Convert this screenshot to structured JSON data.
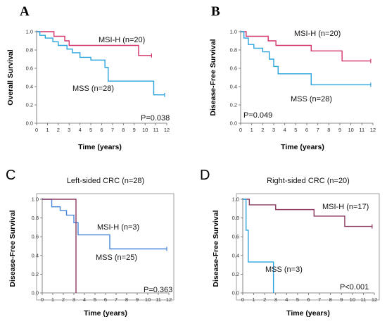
{
  "chart_data": [
    {
      "panel": "A",
      "type": "line",
      "ylabel": "Overall Survival",
      "xlabel": "Time (years)",
      "xlim": [
        0,
        12
      ],
      "ylim": [
        0,
        1
      ],
      "xticks": [
        "0",
        "1",
        "2",
        "3",
        "4",
        "5",
        "6",
        "7",
        "8",
        "9",
        "10",
        "11",
        "12"
      ],
      "yticks": [
        "0.0",
        "0.2",
        "0.4",
        "0.6",
        "0.8",
        "1.0"
      ],
      "pvalue": "P=0.038",
      "series": [
        {
          "name": "MSI-H (n=20)",
          "color": "#d6336c",
          "x": [
            0,
            1.3,
            1.6,
            2.6,
            3.0,
            9.4,
            10.6
          ],
          "y": [
            1.0,
            1.0,
            0.95,
            0.9,
            0.85,
            0.74,
            0.74
          ]
        },
        {
          "name": "MSS (n=28)",
          "color": "#29a3dd",
          "x": [
            0,
            0.3,
            0.8,
            1.5,
            2.0,
            2.8,
            3.3,
            4.0,
            5.0,
            6.3,
            6.6,
            10.8,
            11.8
          ],
          "y": [
            1.0,
            0.96,
            0.93,
            0.89,
            0.85,
            0.81,
            0.77,
            0.72,
            0.69,
            0.61,
            0.46,
            0.31,
            0.31
          ]
        }
      ]
    },
    {
      "panel": "B",
      "type": "line",
      "ylabel": "Disease-Free Survival",
      "xlabel": "Time (years)",
      "xlim": [
        0,
        12
      ],
      "ylim": [
        0,
        1
      ],
      "xticks": [
        "0",
        "1",
        "2",
        "3",
        "4",
        "5",
        "6",
        "7",
        "8",
        "9",
        "10",
        "11",
        "12"
      ],
      "yticks": [
        "0.0",
        "0.2",
        "0.4",
        "0.6",
        "0.8",
        "1.0"
      ],
      "pvalue": "P=0.049",
      "series": [
        {
          "name": "MSI-H (n=20)",
          "color": "#d6336c",
          "x": [
            0,
            0.5,
            2.5,
            3.2,
            6.4,
            9.2,
            11.8
          ],
          "y": [
            1.0,
            0.95,
            0.9,
            0.85,
            0.79,
            0.68,
            0.68
          ]
        },
        {
          "name": "MSS (n=28)",
          "color": "#29a3dd",
          "x": [
            0,
            0.3,
            0.7,
            1.2,
            2.0,
            2.6,
            3.0,
            3.4,
            6.4,
            11.8
          ],
          "y": [
            1.0,
            0.93,
            0.86,
            0.82,
            0.78,
            0.7,
            0.62,
            0.54,
            0.42,
            0.42
          ]
        }
      ]
    },
    {
      "panel": "C",
      "type": "line",
      "title": "Left-sided CRC (n=28)",
      "ylabel": "Disease-Free Survival",
      "xlabel": "Time (years)",
      "xlim": [
        0,
        12
      ],
      "ylim": [
        0,
        1
      ],
      "xticks": [
        "0",
        "1",
        "2",
        "3",
        "4",
        "5",
        "6",
        "7",
        "8",
        "9",
        "10",
        "11",
        "12"
      ],
      "yticks": [
        "0.0",
        "0.2",
        "0.4",
        "0.6",
        "0.8",
        "1.0"
      ],
      "pvalue": "P=0.363",
      "series": [
        {
          "name": "MSS (n=25)",
          "color": "#4a86d8",
          "x": [
            0,
            0.9,
            1.7,
            2.3,
            3.0,
            3.4,
            6.4,
            11.8
          ],
          "y": [
            1.0,
            0.92,
            0.88,
            0.83,
            0.75,
            0.62,
            0.47,
            0.47
          ]
        },
        {
          "name": "MSI-H (n=3)",
          "color": "#8b3a62",
          "x": [
            0,
            3.2,
            3.2
          ],
          "y": [
            1.0,
            1.0,
            0.0
          ]
        }
      ]
    },
    {
      "panel": "D",
      "type": "line",
      "title": "Right-sided CRC (n=20)",
      "ylabel": "Disease-Free Survival",
      "xlabel": "Time (years)",
      "xlim": [
        0,
        12
      ],
      "ylim": [
        0,
        1
      ],
      "xticks": [
        "0",
        "1",
        "2",
        "3",
        "4",
        "5",
        "6",
        "7",
        "8",
        "9",
        "10",
        "11",
        "12"
      ],
      "yticks": [
        "0.0",
        "0.2",
        "0.4",
        "0.6",
        "0.8",
        "1.0"
      ],
      "pvalue": "P<0.001",
      "series": [
        {
          "name": "MSI-H (n=17)",
          "color": "#8b3a62",
          "x": [
            0,
            0.6,
            3.0,
            6.5,
            9.3,
            11.8
          ],
          "y": [
            1.0,
            0.94,
            0.89,
            0.82,
            0.71,
            0.71
          ]
        },
        {
          "name": "MSS (n=3)",
          "color": "#29a3dd",
          "x": [
            0,
            0.3,
            0.5,
            2.8,
            2.8
          ],
          "y": [
            1.0,
            0.67,
            0.33,
            0.33,
            0.0
          ]
        }
      ]
    }
  ]
}
